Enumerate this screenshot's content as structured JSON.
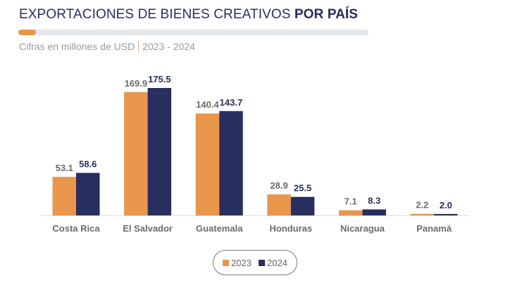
{
  "header": {
    "title_regular": "EXPORTACIONES DE BIENES CREATIVOS ",
    "title_bold": "POR PAÍS",
    "progress": 0.05,
    "subtitle_left": "Cifras en millones de USD",
    "subtitle_right": "2023 - 2024"
  },
  "colors": {
    "2023": "#e8964b",
    "2024": "#282e5e",
    "label_2023": "#6b6b6b",
    "label_2024": "#282e5e",
    "category": "#6b6b6b"
  },
  "chart_data": {
    "type": "bar",
    "title": "EXPORTACIONES DE BIENES CREATIVOS POR PAÍS",
    "subtitle": "Cifras en millones de USD | 2023 - 2024",
    "categories": [
      "Costa Rica",
      "El Salvador",
      "Guatemala",
      "Honduras",
      "Nicaragua",
      "Panamá"
    ],
    "series": [
      {
        "name": "2023",
        "values": [
          53.1,
          169.9,
          140.4,
          28.9,
          7.1,
          2.2
        ],
        "labels": [
          "53.1",
          "169.9",
          "140.4",
          "28.9",
          "7.1",
          "2.2"
        ]
      },
      {
        "name": "2024",
        "values": [
          58.6,
          175.5,
          143.7,
          25.5,
          8.3,
          2.0
        ],
        "labels": [
          "58.6",
          "175.5",
          "143.7",
          "25.5",
          "8.3",
          "2.0"
        ]
      }
    ],
    "xlabel": "",
    "ylabel": "",
    "ylim": [
      0,
      175.5
    ],
    "grid": false,
    "legend": "bottom-center"
  },
  "legend": {
    "items": [
      "2023",
      "2024"
    ]
  }
}
